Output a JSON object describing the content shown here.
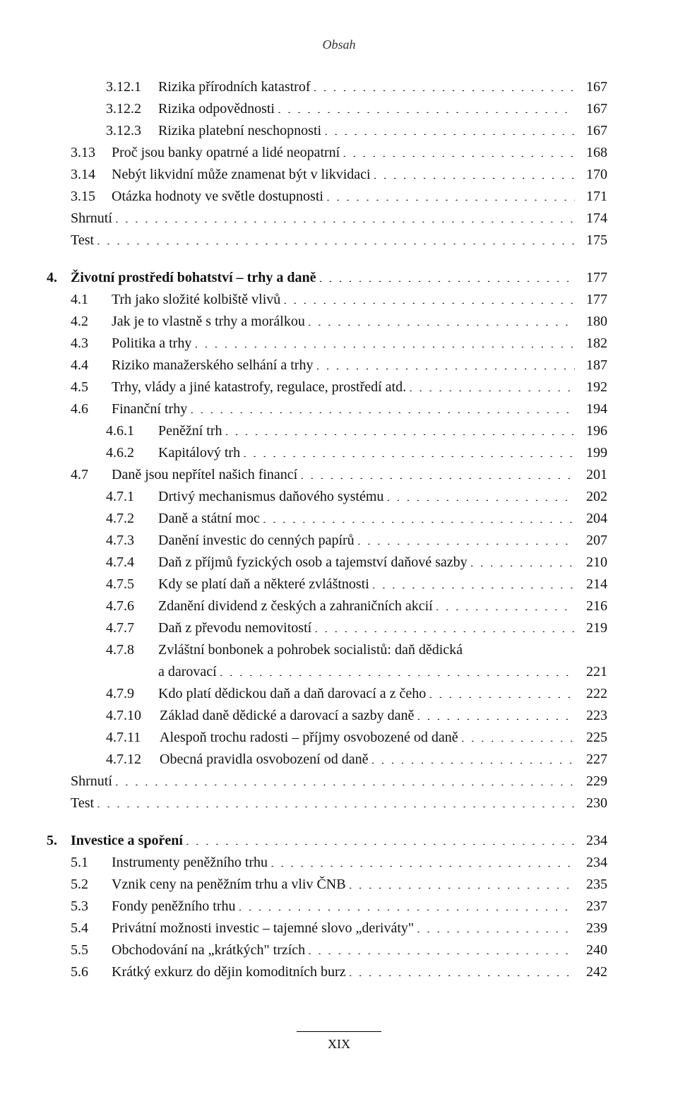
{
  "header": "Obsah",
  "footer": "XIX",
  "entries": [
    {
      "indent": "i1",
      "num": "3.12.1",
      "numClass": "num-col1",
      "label": "Rizika přírodních katastrof",
      "page": "167"
    },
    {
      "indent": "i1",
      "num": "3.12.2",
      "numClass": "num-col1",
      "label": "Rizika odpovědnosti",
      "page": "167"
    },
    {
      "indent": "i1",
      "num": "3.12.3",
      "numClass": "num-col1",
      "label": "Rizika platební neschopnosti",
      "page": "167"
    },
    {
      "indent": "i0",
      "num": "3.13",
      "numClass": "num-col2",
      "label": "Proč jsou banky opatrné a lidé neopatrní",
      "page": "168"
    },
    {
      "indent": "i0",
      "num": "3.14",
      "numClass": "num-col2",
      "label": "Nebýt likvidní může znamenat být v likvidaci",
      "page": "170"
    },
    {
      "indent": "i0",
      "num": "3.15",
      "numClass": "num-col2",
      "label": "Otázka hodnoty ve světle dostupnosti",
      "page": "171"
    },
    {
      "indent": "i0",
      "num": "",
      "numClass": "",
      "label": "Shrnutí",
      "page": "174"
    },
    {
      "indent": "i0",
      "num": "",
      "numClass": "",
      "label": "Test",
      "page": "175"
    },
    {
      "gap": true
    },
    {
      "indent": "i0",
      "num": "4.",
      "numClass": "chapter-num",
      "label": "Životní prostředí bohatství – trhy a daně",
      "page": "177",
      "bold": true,
      "chapter": true
    },
    {
      "indent": "i0",
      "num": "4.1",
      "numClass": "num-col2",
      "label": "Trh jako složité kolbiště vlivů",
      "page": "177"
    },
    {
      "indent": "i0",
      "num": "4.2",
      "numClass": "num-col2",
      "label": "Jak je to vlastně s trhy a morálkou",
      "page": "180"
    },
    {
      "indent": "i0",
      "num": "4.3",
      "numClass": "num-col2",
      "label": "Politika a trhy",
      "page": "182"
    },
    {
      "indent": "i0",
      "num": "4.4",
      "numClass": "num-col2",
      "label": "Riziko manažerského selhání a trhy",
      "page": "187"
    },
    {
      "indent": "i0",
      "num": "4.5",
      "numClass": "num-col2",
      "label": "Trhy, vlády a jiné katastrofy, regulace, prostředí atd.",
      "page": "192"
    },
    {
      "indent": "i0",
      "num": "4.6",
      "numClass": "num-col2",
      "label": "Finanční trhy",
      "page": "194"
    },
    {
      "indent": "i1",
      "num": "4.6.1",
      "numClass": "num-col1",
      "label": "Peněžní trh",
      "page": "196"
    },
    {
      "indent": "i1",
      "num": "4.6.2",
      "numClass": "num-col1",
      "label": "Kapitálový trh",
      "page": "199"
    },
    {
      "indent": "i0",
      "num": "4.7",
      "numClass": "num-col2",
      "label": "Daně jsou nepřítel našich financí",
      "page": "201"
    },
    {
      "indent": "i1",
      "num": "4.7.1",
      "numClass": "num-col1",
      "label": "Drtivý mechanismus daňového systému",
      "page": "202"
    },
    {
      "indent": "i1",
      "num": "4.7.2",
      "numClass": "num-col1",
      "label": "Daně a státní moc",
      "page": "204"
    },
    {
      "indent": "i1",
      "num": "4.7.3",
      "numClass": "num-col1",
      "label": "Danění investic do cenných papírů",
      "page": "207"
    },
    {
      "indent": "i1",
      "num": "4.7.4",
      "numClass": "num-col1",
      "label": "Daň z příjmů fyzických osob a tajemství daňové sazby",
      "page": "210"
    },
    {
      "indent": "i1",
      "num": "4.7.5",
      "numClass": "num-col1",
      "label": "Kdy se platí daň a některé zvláštnosti",
      "page": "214"
    },
    {
      "indent": "i1",
      "num": "4.7.6",
      "numClass": "num-col1",
      "label": "Zdanění dividend z českých a zahraničních akcií",
      "page": "216"
    },
    {
      "indent": "i1",
      "num": "4.7.7",
      "numClass": "num-col1",
      "label": "Daň z převodu nemovitostí",
      "page": "219"
    },
    {
      "indent": "i1",
      "num": "4.7.8",
      "numClass": "num-col1",
      "label": "Zvláštní bonbonek a pohrobek socialistů: daň dědická a darovací",
      "page": "221",
      "multiline": true
    },
    {
      "indent": "i1",
      "num": "4.7.9",
      "numClass": "num-col1",
      "label": "Kdo platí dědickou daň a daň darovací a z čeho",
      "page": "222"
    },
    {
      "indent": "i1",
      "num": "4.7.10",
      "numClass": "num-col2w",
      "label": "Základ daně dědické a darovací a sazby daně",
      "page": "223"
    },
    {
      "indent": "i1",
      "num": "4.7.11",
      "numClass": "num-col2w",
      "label": "Alespoň trochu radosti – příjmy osvobozené od daně",
      "page": "225"
    },
    {
      "indent": "i1",
      "num": "4.7.12",
      "numClass": "num-col2w",
      "label": "Obecná pravidla osvobození od daně",
      "page": "227"
    },
    {
      "indent": "i0",
      "num": "",
      "numClass": "",
      "label": "Shrnutí",
      "page": "229"
    },
    {
      "indent": "i0",
      "num": "",
      "numClass": "",
      "label": "Test",
      "page": "230"
    },
    {
      "gap": true
    },
    {
      "indent": "i0",
      "num": "5.",
      "numClass": "chapter-num",
      "label": "Investice a spoření",
      "page": "234",
      "bold": true,
      "chapter": true
    },
    {
      "indent": "i0",
      "num": "5.1",
      "numClass": "num-col2",
      "label": "Instrumenty peněžního trhu",
      "page": "234"
    },
    {
      "indent": "i0",
      "num": "5.2",
      "numClass": "num-col2",
      "label": "Vznik ceny na peněžním trhu a vliv ČNB",
      "page": "235"
    },
    {
      "indent": "i0",
      "num": "5.3",
      "numClass": "num-col2",
      "label": "Fondy peněžního trhu",
      "page": "237"
    },
    {
      "indent": "i0",
      "num": "5.4",
      "numClass": "num-col2",
      "label": "Privátní možnosti investic – tajemné slovo „deriváty\"",
      "page": "239"
    },
    {
      "indent": "i0",
      "num": "5.5",
      "numClass": "num-col2",
      "label": "Obchodování na „krátkých\" trzích",
      "page": "240"
    },
    {
      "indent": "i0",
      "num": "5.6",
      "numClass": "num-col2",
      "label": "Krátký exkurz do dějin komoditních burz",
      "page": "242"
    }
  ]
}
